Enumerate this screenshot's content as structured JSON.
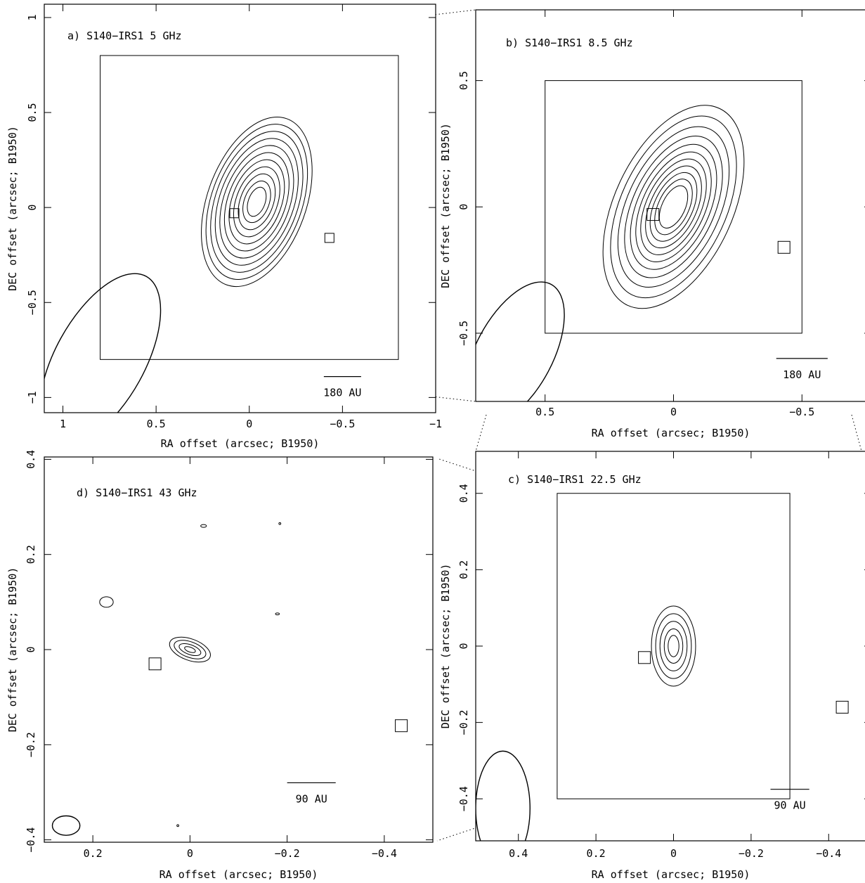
{
  "figure": {
    "xlabel": "RA offset (arcsec; B1950)",
    "ylabel": "DEC offset (arcsec; B1950)"
  },
  "chart_data": [
    {
      "id": "a",
      "type": "contour",
      "title": "a) S140−IRS1 5 GHz",
      "xlabel": "RA offset (arcsec; B1950)",
      "ylabel": "DEC offset (arcsec; B1950)",
      "xlim": [
        1.1,
        -1.0
      ],
      "ylim": [
        -1.08,
        1.07
      ],
      "xticks": [
        1,
        0.5,
        0,
        -0.5,
        -1
      ],
      "xtick_labels": [
        "1",
        "0.5",
        "0",
        "−0.5",
        "−1"
      ],
      "yticks": [
        -1,
        -0.5,
        0,
        0.5,
        1
      ],
      "ytick_labels": [
        "−1",
        "−0.5",
        "0",
        "0.5",
        "1"
      ],
      "inset_box": {
        "x": [
          0.8,
          -0.8
        ],
        "y": [
          -0.8,
          0.8
        ]
      },
      "scale_bar": {
        "label": "180 AU",
        "x": [
          -0.4,
          -0.6
        ],
        "y": -0.89
      },
      "markers": [
        {
          "x": 0.08,
          "y": -0.03
        },
        {
          "x": -0.43,
          "y": -0.16
        }
      ],
      "beam": {
        "x": 0.8,
        "y": -0.8,
        "major": 0.5,
        "minor": 0.24,
        "pa_deg": 29
      },
      "contours": {
        "center": [
          -0.04,
          0.03
        ],
        "pa_deg": 20,
        "levels": [
          {
            "a": 0.265,
            "b": 0.465
          },
          {
            "a": 0.243,
            "b": 0.426
          },
          {
            "a": 0.221,
            "b": 0.387
          },
          {
            "a": 0.199,
            "b": 0.348
          },
          {
            "a": 0.177,
            "b": 0.309
          },
          {
            "a": 0.155,
            "b": 0.27
          },
          {
            "a": 0.133,
            "b": 0.231
          },
          {
            "a": 0.111,
            "b": 0.192
          },
          {
            "a": 0.089,
            "b": 0.153
          },
          {
            "a": 0.067,
            "b": 0.114
          },
          {
            "a": 0.045,
            "b": 0.08
          }
        ]
      }
    },
    {
      "id": "b",
      "type": "contour",
      "title": "b) S140−IRS1 8.5 GHz",
      "xlabel": "RA offset (arcsec; B1950)",
      "ylabel": "DEC offset (arcsec; B1950)",
      "xlim": [
        0.77,
        -0.77
      ],
      "ylim": [
        -0.77,
        0.78
      ],
      "xticks": [
        0.5,
        0,
        -0.5
      ],
      "xtick_labels": [
        "0.5",
        "0",
        "−0.5"
      ],
      "yticks": [
        -0.5,
        0,
        0.5
      ],
      "ytick_labels": [
        "−0.5",
        "0",
        "0.5"
      ],
      "inset_box": {
        "x": [
          0.5,
          -0.5
        ],
        "y": [
          -0.5,
          0.5
        ]
      },
      "scale_bar": {
        "label": "180 AU",
        "x": [
          -0.4,
          -0.6
        ],
        "y": -0.6
      },
      "markers": [
        {
          "x": 0.08,
          "y": -0.03
        },
        {
          "x": -0.43,
          "y": -0.16
        }
      ],
      "beam": {
        "x": 0.62,
        "y": -0.58,
        "major": 0.31,
        "minor": 0.15,
        "pa_deg": 28
      },
      "contours": {
        "center": [
          0.0,
          0.0
        ],
        "pa_deg": 25,
        "levels": [
          {
            "a": 0.23,
            "b": 0.43
          },
          {
            "a": 0.205,
            "b": 0.385
          },
          {
            "a": 0.181,
            "b": 0.34
          },
          {
            "a": 0.159,
            "b": 0.3
          },
          {
            "a": 0.14,
            "b": 0.265
          },
          {
            "a": 0.122,
            "b": 0.233
          },
          {
            "a": 0.106,
            "b": 0.203
          },
          {
            "a": 0.09,
            "b": 0.174
          },
          {
            "a": 0.075,
            "b": 0.146
          },
          {
            "a": 0.06,
            "b": 0.118
          },
          {
            "a": 0.045,
            "b": 0.09
          }
        ]
      }
    },
    {
      "id": "c",
      "type": "contour",
      "title": "c) S140−IRS1 22.5 GHz",
      "xlabel": "RA offset (arcsec; B1950)",
      "ylabel": "DEC offset (arcsec; B1950)",
      "xlim": [
        0.51,
        -0.51
      ],
      "ylim": [
        -0.51,
        0.51
      ],
      "xticks": [
        0.4,
        0.2,
        0,
        -0.2,
        -0.4
      ],
      "xtick_labels": [
        "0.4",
        "0.2",
        "0",
        "−0.2",
        "−0.4"
      ],
      "yticks": [
        -0.4,
        -0.2,
        0,
        0.2,
        0.4
      ],
      "ytick_labels": [
        "−0.4",
        "−0.2",
        "0",
        "0.2",
        "0.4"
      ],
      "inset_box": {
        "x": [
          0.3,
          -0.3
        ],
        "y": [
          -0.4,
          0.4
        ]
      },
      "scale_bar": {
        "label": "90 AU",
        "x": [
          -0.25,
          -0.35
        ],
        "y": -0.375
      },
      "markers": [
        {
          "x": 0.075,
          "y": -0.03
        },
        {
          "x": -0.435,
          "y": -0.16
        }
      ],
      "beam": {
        "x": 0.44,
        "y": -0.425,
        "major": 0.15,
        "minor": 0.07,
        "pa_deg": 0
      },
      "contours": {
        "center": [
          0.0,
          0.0
        ],
        "pa_deg": 0,
        "levels": [
          {
            "a": 0.057,
            "b": 0.105
          },
          {
            "a": 0.046,
            "b": 0.085
          },
          {
            "a": 0.035,
            "b": 0.065
          },
          {
            "a": 0.024,
            "b": 0.045
          },
          {
            "a": 0.014,
            "b": 0.028
          }
        ]
      }
    },
    {
      "id": "d",
      "type": "contour",
      "title": "d) S140−IRS1 43 GHz",
      "xlabel": "RA offset (arcsec; B1950)",
      "ylabel": "DEC offset (arcsec; B1950)",
      "xlim": [
        0.3,
        -0.5
      ],
      "ylim": [
        -0.405,
        0.405
      ],
      "xticks": [
        0.2,
        0,
        -0.2,
        -0.4
      ],
      "xtick_labels": [
        "0.2",
        "0",
        "−0.2",
        "−0.4"
      ],
      "yticks": [
        -0.4,
        -0.2,
        0,
        0.2,
        0.4
      ],
      "ytick_labels": [
        "−0.4",
        "−0.2",
        "0",
        "0.2",
        "0.4"
      ],
      "inset_box": null,
      "scale_bar": {
        "label": "90 AU",
        "x": [
          -0.2,
          -0.3
        ],
        "y": -0.28
      },
      "markers": [
        {
          "x": 0.072,
          "y": -0.03
        },
        {
          "x": -0.435,
          "y": -0.16
        }
      ],
      "beam": {
        "x": 0.255,
        "y": -0.37,
        "major": 0.029,
        "minor": 0.02,
        "pa_deg": 90
      },
      "contours": {
        "center": [
          0.0,
          0.0
        ],
        "pa_deg": -70,
        "levels": [
          {
            "a": 0.022,
            "b": 0.045
          },
          {
            "a": 0.016,
            "b": 0.035
          },
          {
            "a": 0.01,
            "b": 0.024
          },
          {
            "a": 0.005,
            "b": 0.012
          }
        ]
      },
      "blobs": [
        {
          "x": 0.172,
          "y": 0.1,
          "rx": 0.014,
          "ry": 0.011
        },
        {
          "x": -0.028,
          "y": 0.26,
          "rx": 0.006,
          "ry": 0.003
        },
        {
          "x": -0.18,
          "y": 0.075,
          "rx": 0.004,
          "ry": 0.002
        },
        {
          "x": -0.185,
          "y": 0.265,
          "rx": 0.002,
          "ry": 0.002
        },
        {
          "x": 0.025,
          "y": -0.37,
          "rx": 0.002,
          "ry": 0.002
        }
      ]
    }
  ]
}
